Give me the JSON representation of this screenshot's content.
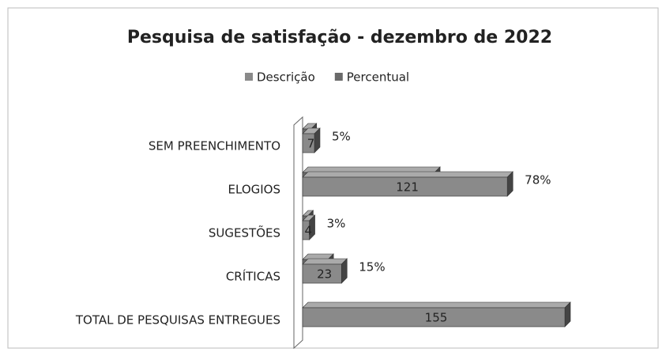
{
  "chart_data": {
    "type": "bar",
    "orientation": "horizontal",
    "title": "Pesquisa de satisfação - dezembro de 2022",
    "categories": [
      "SEM PREENCHIMENTO",
      "ELOGIOS",
      "SUGESTÕES",
      "CRÍTICAS",
      "TOTAL DE PESQUISAS ENTREGUES"
    ],
    "series": [
      {
        "name": "Descrição",
        "color": "#8a8a8a",
        "values": [
          7,
          121,
          4,
          23,
          155
        ]
      },
      {
        "name": "Percentual",
        "color": "#6a6a6a",
        "values": [
          5,
          78,
          3,
          15,
          null
        ],
        "value_labels": [
          "5%",
          "78%",
          "3%",
          "15%",
          null
        ]
      }
    ]
  }
}
